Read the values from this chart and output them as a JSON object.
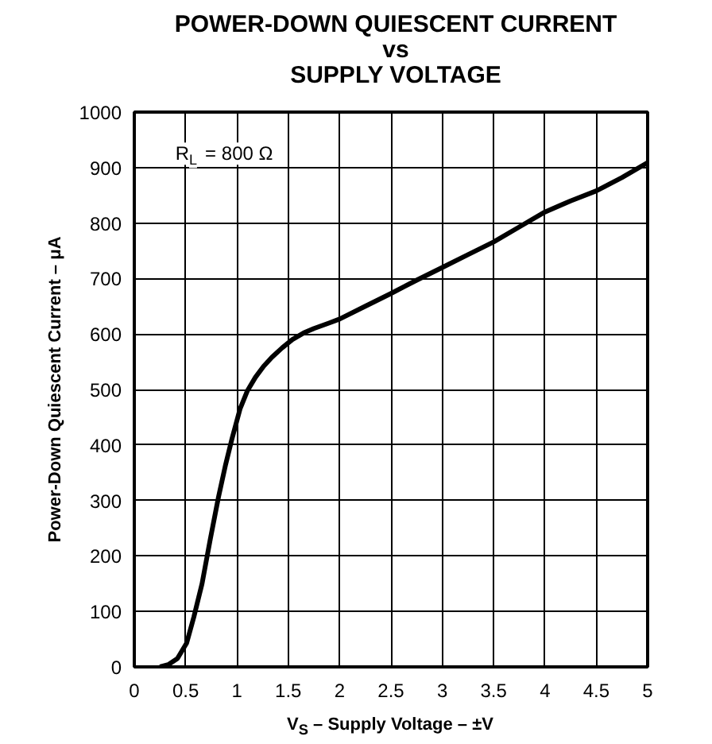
{
  "chart_data": {
    "type": "line",
    "title": "POWER-DOWN QUIESCENT CURRENT\nvs\nSUPPLY VOLTAGE",
    "xlabel": "V$_{S}$ – Supply Voltage – ±V",
    "ylabel": "Power-Down Quiescent Current – μA",
    "annotations": [
      "R$_{L}$ = 800 Ω"
    ],
    "x": [
      0.25,
      0.33,
      0.42,
      0.51,
      0.58,
      0.66,
      0.74,
      0.82,
      0.89,
      0.95,
      1.03,
      1.1,
      1.18,
      1.26,
      1.34,
      1.44,
      1.54,
      1.65,
      1.75,
      1.9,
      2.0,
      2.25,
      2.5,
      2.75,
      3.0,
      3.25,
      3.5,
      3.75,
      4.0,
      4.25,
      4.5,
      4.75,
      5.0
    ],
    "series": [
      {
        "color": "#000000",
        "values": [
          0,
          4,
          15,
          43,
          90,
          150,
          230,
          306,
          365,
          410,
          465,
          497,
          522,
          542,
          558,
          575,
          590,
          602,
          610,
          620,
          627,
          650,
          673,
          697,
          720,
          743,
          766,
          793,
          820,
          840,
          858,
          882,
          909
        ]
      }
    ],
    "xlim": [
      0,
      5
    ],
    "ylim": [
      0,
      1000
    ],
    "xticks": [
      0,
      0.5,
      1,
      1.5,
      2,
      2.5,
      3,
      3.5,
      4,
      4.5,
      5
    ],
    "yticks": [
      0,
      100,
      200,
      300,
      400,
      500,
      600,
      700,
      800,
      900,
      1000
    ],
    "grid": true,
    "marker": "none",
    "line_style": "solid"
  }
}
